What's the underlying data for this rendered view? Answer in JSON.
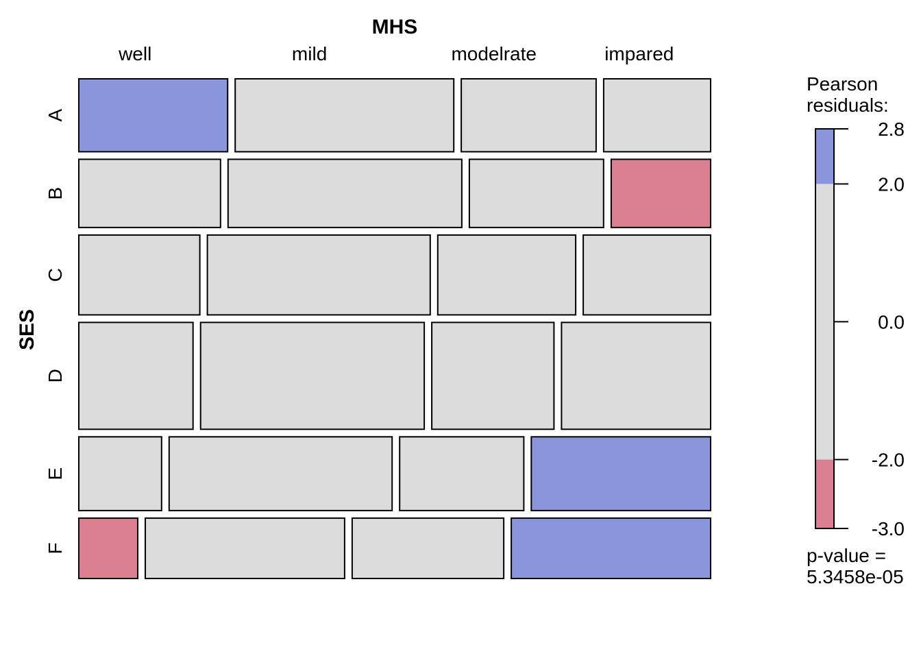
{
  "chart_data": {
    "type": "mosaic",
    "title": "",
    "col_variable": "MHS",
    "row_variable": "SES",
    "columns": [
      "well",
      "mild",
      "modelrate",
      "impared"
    ],
    "rows": [
      "A",
      "B",
      "C",
      "D",
      "E",
      "F"
    ],
    "counts": [
      [
        64,
        94,
        58,
        46
      ],
      [
        57,
        94,
        54,
        40
      ],
      [
        57,
        105,
        65,
        60
      ],
      [
        72,
        141,
        77,
        94
      ],
      [
        36,
        97,
        54,
        78
      ],
      [
        21,
        71,
        54,
        71
      ]
    ],
    "shading": [
      [
        "blue",
        "gray",
        "gray",
        "gray"
      ],
      [
        "gray",
        "gray",
        "gray",
        "red"
      ],
      [
        "gray",
        "gray",
        "gray",
        "gray"
      ],
      [
        "gray",
        "gray",
        "gray",
        "gray"
      ],
      [
        "gray",
        "gray",
        "gray",
        "blue"
      ],
      [
        "red",
        "gray",
        "gray",
        "blue"
      ]
    ],
    "legend": {
      "title_line1": "Pearson",
      "title_line2": "residuals:",
      "range": [
        -3.0,
        2.8
      ],
      "breaks": [
        -3.0,
        -2.0,
        2.0,
        2.8
      ],
      "ticks": [
        "2.8",
        "2.0",
        "0.0",
        "-2.0",
        "-3.0"
      ],
      "tick_values": [
        2.8,
        2.0,
        0.0,
        -2.0,
        -3.0
      ],
      "pvalue_line1": "p-value =",
      "pvalue_line2": "5.3458e-05",
      "placement": "right"
    },
    "colors": {
      "blue": "#8b95dc",
      "red": "#db8090",
      "gray": "#dcdcdc",
      "border": "#000000"
    }
  }
}
